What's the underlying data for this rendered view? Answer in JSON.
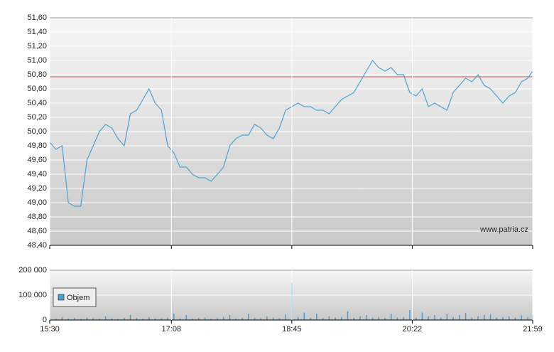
{
  "chart_data": [
    {
      "type": "line",
      "color": "#4aa3d3",
      "reference": 50.77,
      "reference_color": "#d9534f",
      "watermark": "www.patria.cz",
      "x": [
        "15:30",
        "15:35",
        "15:40",
        "15:45",
        "15:50",
        "15:55",
        "16:00",
        "16:05",
        "16:10",
        "16:15",
        "16:20",
        "16:25",
        "16:30",
        "16:35",
        "16:40",
        "16:45",
        "16:50",
        "16:55",
        "17:00",
        "17:05",
        "17:10",
        "17:15",
        "17:20",
        "17:25",
        "17:30",
        "17:35",
        "17:40",
        "17:45",
        "17:50",
        "17:55",
        "18:00",
        "18:05",
        "18:10",
        "18:15",
        "18:20",
        "18:25",
        "18:30",
        "18:35",
        "18:40",
        "18:45",
        "18:50",
        "18:55",
        "19:00",
        "19:05",
        "19:10",
        "19:15",
        "19:20",
        "19:25",
        "19:30",
        "19:35",
        "19:40",
        "19:45",
        "19:50",
        "19:55",
        "20:00",
        "20:05",
        "20:10",
        "20:15",
        "20:20",
        "20:25",
        "20:30",
        "20:35",
        "20:40",
        "20:45",
        "20:50",
        "20:55",
        "21:00",
        "21:05",
        "21:10",
        "21:15",
        "21:20",
        "21:25",
        "21:30",
        "21:35",
        "21:40",
        "21:45",
        "21:50",
        "21:55",
        "21:59"
      ],
      "values": [
        49.85,
        49.75,
        49.8,
        49.0,
        48.95,
        48.95,
        49.6,
        49.8,
        50.0,
        50.1,
        50.05,
        49.9,
        49.8,
        50.25,
        50.3,
        50.45,
        50.6,
        50.4,
        50.3,
        49.8,
        49.7,
        49.5,
        49.5,
        49.4,
        49.35,
        49.35,
        49.3,
        49.4,
        49.5,
        49.8,
        49.9,
        49.95,
        49.95,
        50.1,
        50.05,
        49.95,
        49.9,
        50.05,
        50.3,
        50.35,
        50.4,
        50.35,
        50.35,
        50.3,
        50.3,
        50.25,
        50.35,
        50.45,
        50.5,
        50.55,
        50.7,
        50.85,
        51.0,
        50.9,
        50.85,
        50.9,
        50.8,
        50.8,
        50.55,
        50.5,
        50.6,
        50.35,
        50.4,
        50.35,
        50.3,
        50.55,
        50.65,
        50.75,
        50.7,
        50.8,
        50.65,
        50.6,
        50.5,
        50.4,
        50.5,
        50.55,
        50.7,
        50.75,
        50.85
      ],
      "xlim": [
        "15:30",
        "21:59"
      ],
      "ylim": [
        48.4,
        51.6
      ],
      "yticks": [
        {
          "value": 48.4,
          "label": "48,40"
        },
        {
          "value": 48.6,
          "label": "48,60"
        },
        {
          "value": 48.8,
          "label": "48,80"
        },
        {
          "value": 49.0,
          "label": "49,00"
        },
        {
          "value": 49.2,
          "label": "49,20"
        },
        {
          "value": 49.4,
          "label": "49,40"
        },
        {
          "value": 49.6,
          "label": "49,60"
        },
        {
          "value": 49.8,
          "label": "49,80"
        },
        {
          "value": 50.0,
          "label": "50,00"
        },
        {
          "value": 50.2,
          "label": "50,20"
        },
        {
          "value": 50.4,
          "label": "50,40"
        },
        {
          "value": 50.6,
          "label": "50,60"
        },
        {
          "value": 50.8,
          "label": "50,80"
        },
        {
          "value": 51.0,
          "label": "51,00"
        },
        {
          "value": 51.2,
          "label": "51,20"
        },
        {
          "value": 51.4,
          "label": "51,40"
        },
        {
          "value": 51.6,
          "label": "51,60"
        }
      ],
      "grid": true
    },
    {
      "type": "bar",
      "x": [
        "15:30",
        "15:35",
        "15:40",
        "15:45",
        "15:50",
        "15:55",
        "16:00",
        "16:05",
        "16:10",
        "16:15",
        "16:20",
        "16:25",
        "16:30",
        "16:35",
        "16:40",
        "16:45",
        "16:50",
        "16:55",
        "17:00",
        "17:05",
        "17:10",
        "17:15",
        "17:20",
        "17:25",
        "17:30",
        "17:35",
        "17:40",
        "17:45",
        "17:50",
        "17:55",
        "18:00",
        "18:05",
        "18:10",
        "18:15",
        "18:20",
        "18:25",
        "18:30",
        "18:35",
        "18:40",
        "18:45",
        "18:50",
        "18:55",
        "19:00",
        "19:05",
        "19:10",
        "19:15",
        "19:20",
        "19:25",
        "19:30",
        "19:35",
        "19:40",
        "19:45",
        "19:50",
        "19:55",
        "20:00",
        "20:05",
        "20:10",
        "20:15",
        "20:20",
        "20:25",
        "20:30",
        "20:35",
        "20:40",
        "20:45",
        "20:50",
        "20:55",
        "21:00",
        "21:05",
        "21:10",
        "21:15",
        "21:20",
        "21:25",
        "21:30",
        "21:35",
        "21:40",
        "21:45",
        "21:50",
        "21:55",
        "21:59"
      ],
      "series": [
        {
          "name": "Objem",
          "color": "#4a9fd0",
          "values": [
            8000,
            5000,
            12000,
            6000,
            9000,
            4000,
            10000,
            7000,
            5000,
            15000,
            6000,
            4000,
            9000,
            20000,
            8000,
            5000,
            12000,
            6000,
            7000,
            10000,
            25000,
            6000,
            20000,
            5000,
            8000,
            10000,
            5000,
            7000,
            12000,
            20000,
            6000,
            8000,
            25000,
            9000,
            7000,
            15000,
            10000,
            8000,
            22000,
            150000,
            12000,
            30000,
            9000,
            25000,
            8000,
            15000,
            10000,
            12000,
            35000,
            8000,
            15000,
            20000,
            10000,
            12000,
            8000,
            25000,
            10000,
            12000,
            40000,
            9000,
            30000,
            15000,
            20000,
            10000,
            25000,
            12000,
            20000,
            28000,
            10000,
            15000,
            20000,
            22000,
            10000,
            12000,
            15000,
            10000,
            18000,
            12000,
            20000
          ]
        }
      ],
      "xlim": [
        "15:30",
        "21:59"
      ],
      "xticks": [
        "15:30",
        "17:08",
        "18:45",
        "20:22",
        "21:59"
      ],
      "ylim": [
        0,
        200000
      ],
      "yticks": [
        0,
        {
          "value": 100000,
          "label": "100 000"
        },
        {
          "value": 200000,
          "label": "200 000"
        }
      ],
      "grid": true
    }
  ]
}
